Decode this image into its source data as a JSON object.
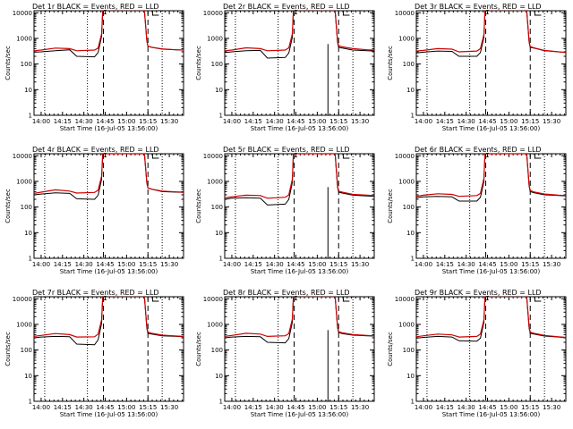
{
  "figure": {
    "ylabel": "Counts/sec",
    "xlabel": "Start Time (16-Jul-05 13:56:00)",
    "x_tick_labels": [
      "14:00",
      "14:15",
      "14:30",
      "14:45",
      "15:00",
      "15:15",
      "15:30"
    ],
    "y_tick_labels": [
      "1",
      "10",
      "100",
      "1000",
      "10000"
    ],
    "marker_label": "C",
    "colors": {
      "events": "#000000",
      "lld": "#cc0000",
      "axes": "#000000"
    }
  },
  "chart_data": [
    {
      "type": "line",
      "title": "Det 1r BLACK = Events, RED = LLD",
      "ylog": true,
      "ylim": [
        1,
        12000
      ],
      "xlim": [
        -2,
        40
      ],
      "vlines_dotted": [
        1,
        13,
        34
      ],
      "vlines_dashed": [
        17.5,
        30
      ],
      "spike_events": false,
      "x": [
        -2,
        0,
        4,
        8,
        10,
        15,
        16,
        17,
        17.3,
        29,
        29.7,
        30,
        31,
        34,
        38,
        40
      ],
      "series": [
        {
          "name": "Events",
          "values": [
            290,
            300,
            330,
            360,
            200,
            190,
            280,
            1200,
            12000,
            12000,
            800,
            500,
            450,
            380,
            360,
            350
          ]
        },
        {
          "name": "LLD",
          "values": [
            330,
            350,
            420,
            400,
            330,
            350,
            420,
            1500,
            12000,
            12000,
            800,
            500,
            450,
            390,
            360,
            350
          ]
        }
      ]
    },
    {
      "type": "line",
      "title": "Det 2r BLACK = Events, RED = LLD",
      "ylog": true,
      "ylim": [
        1,
        12000
      ],
      "xlim": [
        -2,
        40
      ],
      "vlines_dotted": [
        1,
        13,
        34
      ],
      "vlines_dashed": [
        17.5,
        30
      ],
      "spike_events": true,
      "x": [
        -2,
        0,
        4,
        8,
        10,
        15,
        16,
        17,
        17.3,
        29,
        29.7,
        30,
        31,
        34,
        38,
        40
      ],
      "series": [
        {
          "name": "Events",
          "values": [
            280,
            300,
            330,
            340,
            170,
            180,
            270,
            1100,
            12000,
            12000,
            700,
            450,
            420,
            350,
            330,
            320
          ]
        },
        {
          "name": "LLD",
          "values": [
            330,
            350,
            430,
            400,
            330,
            350,
            430,
            1500,
            12000,
            12000,
            800,
            520,
            470,
            400,
            360,
            350
          ]
        }
      ]
    },
    {
      "type": "line",
      "title": "Det 3r BLACK = Events, RED = LLD",
      "ylog": true,
      "ylim": [
        1,
        12000
      ],
      "xlim": [
        -2,
        40
      ],
      "vlines_dotted": [
        1,
        13,
        34
      ],
      "vlines_dashed": [
        17.5,
        30
      ],
      "spike_events": false,
      "x": [
        -2,
        0,
        4,
        8,
        10,
        15,
        16,
        17,
        17.3,
        29,
        29.7,
        30,
        31,
        34,
        38,
        40
      ],
      "series": [
        {
          "name": "Events",
          "values": [
            270,
            290,
            320,
            310,
            200,
            200,
            280,
            1100,
            12000,
            12000,
            700,
            450,
            420,
            330,
            300,
            280
          ]
        },
        {
          "name": "LLD",
          "values": [
            320,
            340,
            400,
            380,
            300,
            320,
            400,
            1400,
            12000,
            12000,
            750,
            480,
            430,
            340,
            300,
            280
          ]
        }
      ]
    },
    {
      "type": "line",
      "title": "Det 4r BLACK = Events, RED = LLD",
      "ylog": true,
      "ylim": [
        1,
        12000
      ],
      "xlim": [
        -2,
        40
      ],
      "vlines_dotted": [
        1,
        13,
        34
      ],
      "vlines_dashed": [
        17.5,
        30
      ],
      "spike_events": false,
      "x": [
        -2,
        0,
        4,
        8,
        10,
        15,
        16,
        17,
        17.3,
        29,
        29.7,
        30,
        31,
        34,
        38,
        40
      ],
      "series": [
        {
          "name": "Events",
          "values": [
            300,
            320,
            360,
            340,
            210,
            200,
            290,
            1200,
            12000,
            12000,
            850,
            550,
            500,
            400,
            380,
            370
          ]
        },
        {
          "name": "LLD",
          "values": [
            340,
            380,
            470,
            420,
            350,
            370,
            450,
            1600,
            12000,
            12000,
            900,
            560,
            500,
            420,
            390,
            380
          ]
        }
      ]
    },
    {
      "type": "line",
      "title": "Det 5r BLACK = Events, RED = LLD",
      "ylog": true,
      "ylim": [
        1,
        12000
      ],
      "xlim": [
        -2,
        40
      ],
      "vlines_dotted": [
        1,
        13,
        34
      ],
      "vlines_dashed": [
        17.5,
        30
      ],
      "spike_events": true,
      "x": [
        -2,
        0,
        4,
        8,
        10,
        15,
        16,
        17,
        17.3,
        29,
        29.7,
        30,
        31,
        34,
        38,
        40
      ],
      "series": [
        {
          "name": "Events",
          "values": [
            200,
            220,
            230,
            220,
            120,
            130,
            200,
            900,
            12000,
            12000,
            600,
            380,
            350,
            290,
            270,
            260
          ]
        },
        {
          "name": "LLD",
          "values": [
            230,
            250,
            290,
            280,
            220,
            240,
            300,
            1200,
            12000,
            12000,
            700,
            420,
            380,
            310,
            290,
            280
          ]
        }
      ]
    },
    {
      "type": "line",
      "title": "Det 6r BLACK = Events, RED = LLD",
      "ylog": true,
      "ylim": [
        1,
        12000
      ],
      "xlim": [
        -2,
        40
      ],
      "vlines_dotted": [
        1,
        13,
        34
      ],
      "vlines_dashed": [
        17.5,
        30
      ],
      "spike_events": false,
      "x": [
        -2,
        0,
        4,
        8,
        10,
        15,
        16,
        17,
        17.3,
        29,
        29.7,
        30,
        31,
        34,
        38,
        40
      ],
      "series": [
        {
          "name": "Events",
          "values": [
            230,
            250,
            260,
            250,
            170,
            170,
            240,
            1000,
            12000,
            12000,
            650,
            400,
            360,
            300,
            280,
            270
          ]
        },
        {
          "name": "LLD",
          "values": [
            260,
            290,
            330,
            310,
            260,
            280,
            340,
            1300,
            12000,
            12000,
            720,
            440,
            390,
            320,
            290,
            280
          ]
        }
      ]
    },
    {
      "type": "line",
      "title": "Det 7r BLACK = Events, RED = LLD",
      "ylog": true,
      "ylim": [
        1,
        12000
      ],
      "xlim": [
        -2,
        40
      ],
      "vlines_dotted": [
        1,
        13,
        34
      ],
      "vlines_dashed": [
        17.5,
        30
      ],
      "spike_events": false,
      "x": [
        -2,
        0,
        4,
        8,
        10,
        15,
        16,
        17,
        17.3,
        29,
        29.7,
        30,
        31,
        34,
        38,
        40
      ],
      "series": [
        {
          "name": "Events",
          "values": [
            300,
            320,
            340,
            330,
            170,
            160,
            250,
            1100,
            12000,
            12000,
            700,
            450,
            420,
            360,
            340,
            330
          ]
        },
        {
          "name": "LLD",
          "values": [
            340,
            370,
            440,
            400,
            320,
            330,
            420,
            1500,
            12000,
            12000,
            800,
            500,
            450,
            380,
            350,
            340
          ]
        }
      ]
    },
    {
      "type": "line",
      "title": "Det 8r BLACK = Events, RED = LLD",
      "ylog": true,
      "ylim": [
        1,
        12000
      ],
      "xlim": [
        -2,
        40
      ],
      "vlines_dotted": [
        1,
        13,
        34
      ],
      "vlines_dashed": [
        17.5,
        30
      ],
      "spike_events": true,
      "x": [
        -2,
        0,
        4,
        8,
        10,
        15,
        16,
        17,
        17.3,
        29,
        29.7,
        30,
        31,
        34,
        38,
        40
      ],
      "series": [
        {
          "name": "Events",
          "values": [
            300,
            320,
            340,
            330,
            200,
            190,
            280,
            1200,
            12000,
            12000,
            750,
            480,
            440,
            380,
            360,
            350
          ]
        },
        {
          "name": "LLD",
          "values": [
            340,
            370,
            450,
            420,
            340,
            360,
            440,
            1600,
            12000,
            12000,
            850,
            520,
            470,
            400,
            370,
            360
          ]
        }
      ]
    },
    {
      "type": "line",
      "title": "Det 9r BLACK = Events, RED = LLD",
      "ylog": true,
      "ylim": [
        1,
        12000
      ],
      "xlim": [
        -2,
        40
      ],
      "vlines_dotted": [
        1,
        13,
        34
      ],
      "vlines_dashed": [
        17.5,
        30
      ],
      "spike_events": false,
      "x": [
        -2,
        0,
        4,
        8,
        10,
        15,
        16,
        17,
        17.3,
        29,
        29.7,
        30,
        31,
        34,
        38,
        40
      ],
      "series": [
        {
          "name": "Events",
          "values": [
            290,
            310,
            340,
            320,
            230,
            220,
            290,
            1200,
            12000,
            12000,
            700,
            450,
            420,
            350,
            320,
            300
          ]
        },
        {
          "name": "LLD",
          "values": [
            330,
            360,
            420,
            390,
            320,
            340,
            420,
            1500,
            12000,
            12000,
            800,
            500,
            450,
            370,
            330,
            310
          ]
        }
      ]
    }
  ]
}
